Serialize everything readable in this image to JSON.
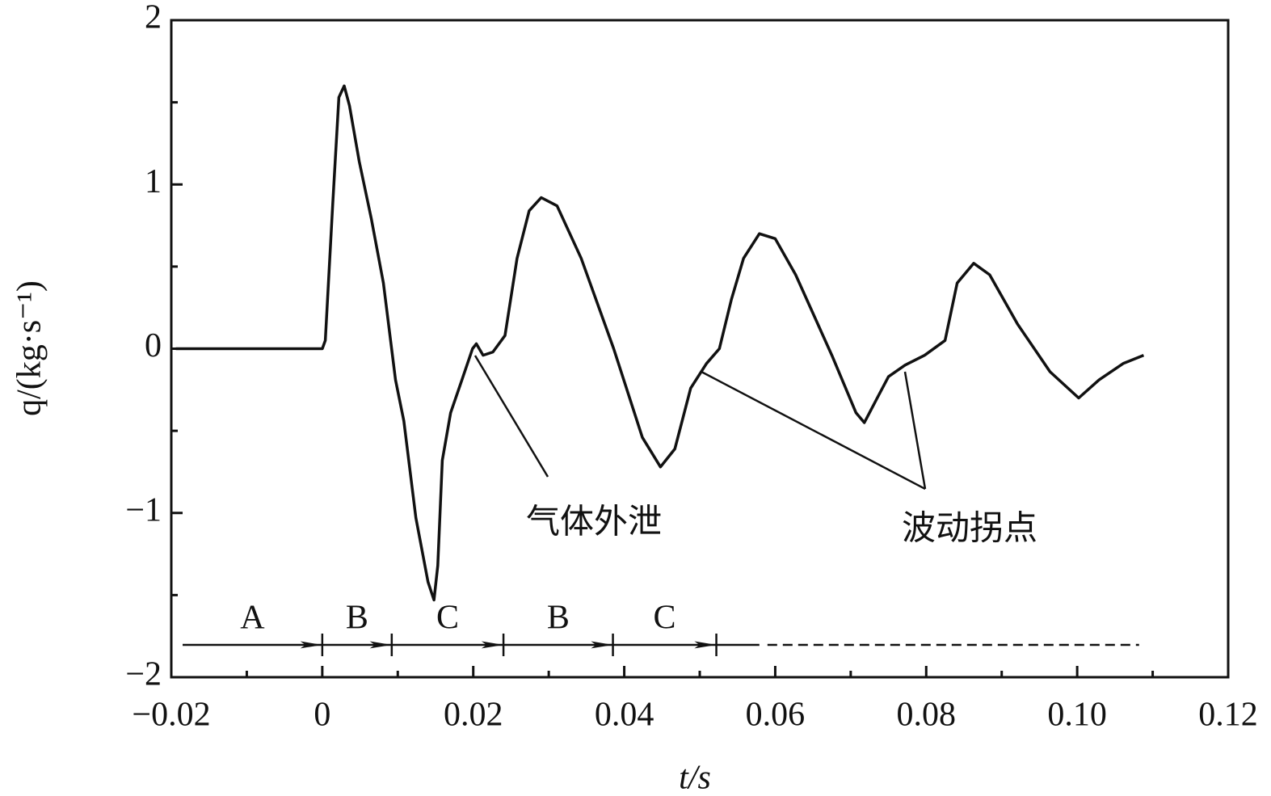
{
  "chart_data": {
    "type": "line",
    "xlabel": "t/s",
    "ylabel": "q/(kg·s⁻¹)",
    "xlim": [
      -0.02,
      0.12
    ],
    "ylim": [
      -2,
      2
    ],
    "xticks": [
      {
        "value": -0.02,
        "label": "−0.02"
      },
      0,
      0.02,
      0.04,
      0.06,
      0.08,
      {
        "value": 0.1,
        "label": "0.10"
      },
      0.12
    ],
    "yticks": [
      {
        "value": -2,
        "label": "−2"
      },
      {
        "value": -1,
        "label": "−1"
      },
      0,
      1,
      2
    ],
    "color": "#111111",
    "x": [
      -0.0194,
      0,
      0.0004,
      0.0014,
      0.0022,
      0.0029,
      0.0036,
      0.0049,
      0.0065,
      0.0081,
      0.0097,
      0.0108,
      0.0124,
      0.014,
      0.0148,
      0.0153,
      0.0159,
      0.017,
      0.0185,
      0.0199,
      0.0204,
      0.0213,
      0.0226,
      0.0242,
      0.0258,
      0.0274,
      0.029,
      0.0311,
      0.0343,
      0.0386,
      0.0424,
      0.0448,
      0.0467,
      0.0488,
      0.0509,
      0.0526,
      0.0542,
      0.0558,
      0.0579,
      0.06,
      0.0627,
      0.0675,
      0.0707,
      0.0718,
      0.0734,
      0.075,
      0.0772,
      0.0798,
      0.0825,
      0.0841,
      0.0863,
      0.0884,
      0.0921,
      0.0964,
      0.1002,
      0.1029,
      0.1061,
      0.1088
    ],
    "values": [
      0,
      0,
      0.05,
      0.89,
      1.53,
      1.6,
      1.48,
      1.14,
      0.79,
      0.4,
      -0.19,
      -0.44,
      -1.03,
      -1.42,
      -1.53,
      -1.32,
      -0.68,
      -0.39,
      -0.19,
      0,
      0.03,
      -0.04,
      -0.02,
      0.08,
      0.55,
      0.84,
      0.92,
      0.87,
      0.55,
      0,
      -0.54,
      -0.72,
      -0.61,
      -0.24,
      -0.09,
      0,
      0.3,
      0.55,
      0.7,
      0.67,
      0.45,
      -0.04,
      -0.39,
      -0.45,
      -0.31,
      -0.17,
      -0.1,
      -0.04,
      0.05,
      0.4,
      0.52,
      0.45,
      0.15,
      -0.14,
      -0.3,
      -0.19,
      -0.09,
      -0.04
    ],
    "annotations": [
      "气体外泄",
      "波动拐点"
    ],
    "phase_labels": [
      "A",
      "B",
      "C",
      "B",
      "C"
    ],
    "phase_bounds": [
      -0.0185,
      0,
      0.0092,
      0.024,
      0.0385,
      0.0522,
      0.0579
    ],
    "phase_end": 0.1082
  }
}
